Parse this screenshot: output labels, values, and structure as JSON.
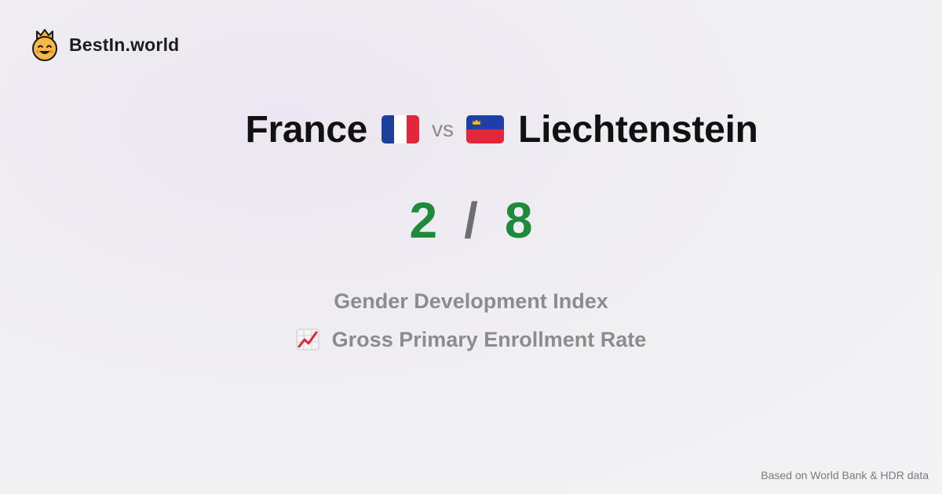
{
  "brand": {
    "name": "BestIn.world",
    "logo_icon": "crowned-smiley-icon"
  },
  "comparison": {
    "country_a": "France",
    "country_a_flag": "france-flag-icon",
    "vs_label": "vs",
    "country_b": "Liechtenstein",
    "country_b_flag": "liechtenstein-flag-icon"
  },
  "score": {
    "a": "2",
    "separator": "/",
    "b": "8",
    "color": "#1f8a3c"
  },
  "metrics": [
    {
      "label": "Gender Development Index",
      "icon": ""
    },
    {
      "label": "Gross Primary Enrollment Rate",
      "icon": "chart-increasing-icon"
    }
  ],
  "footer": {
    "source": "Based on World Bank & HDR data"
  }
}
